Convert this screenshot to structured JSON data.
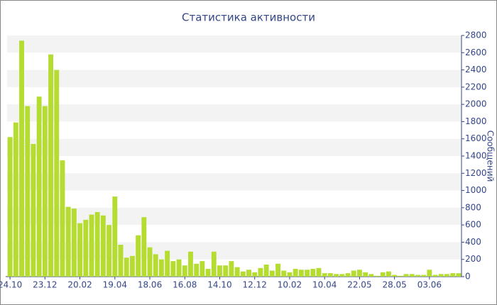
{
  "chart_data": {
    "type": "bar",
    "title": "Статистика активности",
    "y_label": "Сообщений",
    "categories": [
      "24.10",
      null,
      null,
      null,
      null,
      null,
      "23.12",
      null,
      null,
      null,
      null,
      null,
      "20.02",
      null,
      null,
      null,
      null,
      null,
      "19.04",
      null,
      null,
      null,
      null,
      null,
      "18.06",
      null,
      null,
      null,
      null,
      null,
      "16.08",
      null,
      null,
      null,
      null,
      null,
      "14.10",
      null,
      null,
      null,
      null,
      null,
      "12.12",
      null,
      null,
      null,
      null,
      null,
      "10.02",
      null,
      null,
      null,
      null,
      null,
      "10.04",
      null,
      null,
      null,
      null,
      null,
      "22.05",
      null,
      null,
      null,
      null,
      null,
      "28.05",
      null,
      null,
      null,
      null,
      null,
      "03.06",
      null,
      null,
      null,
      null,
      null
    ],
    "values": [
      1620,
      1790,
      2740,
      1980,
      1540,
      2090,
      1980,
      2580,
      2400,
      1350,
      810,
      790,
      620,
      660,
      720,
      750,
      710,
      600,
      930,
      370,
      220,
      240,
      480,
      690,
      340,
      260,
      200,
      300,
      180,
      200,
      130,
      290,
      150,
      180,
      90,
      290,
      130,
      130,
      180,
      110,
      60,
      80,
      50,
      100,
      140,
      70,
      150,
      70,
      50,
      90,
      80,
      80,
      90,
      100,
      40,
      40,
      30,
      30,
      40,
      70,
      80,
      50,
      30,
      10,
      50,
      60,
      20,
      10,
      30,
      30,
      20,
      20,
      80,
      20,
      30,
      30,
      40,
      40
    ],
    "color": "#b5dc30",
    "ylim": [
      0,
      2800
    ],
    "yticks": [
      0,
      200,
      400,
      600,
      800,
      1000,
      1200,
      1400,
      1600,
      1800,
      2000,
      2200,
      2400,
      2600,
      2800
    ],
    "grid": true
  }
}
